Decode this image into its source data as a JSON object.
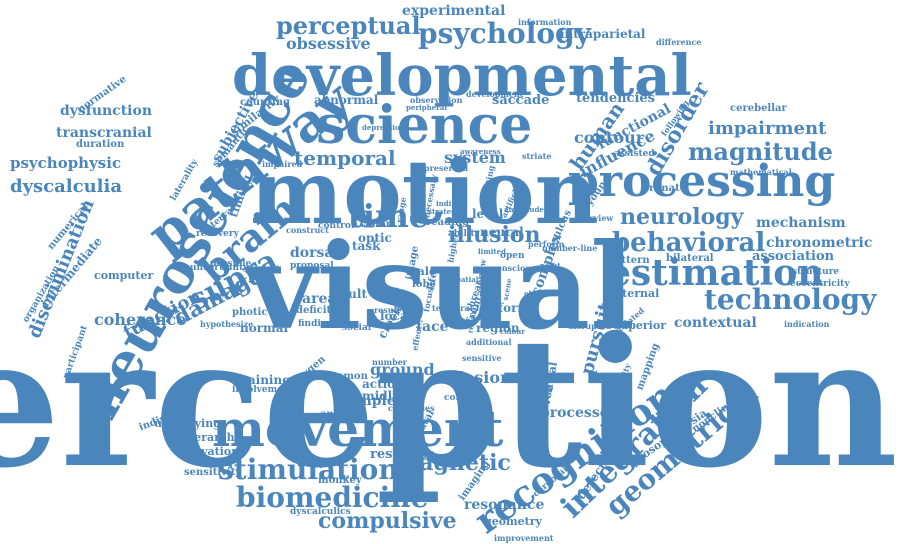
{
  "cloud": {
    "color": "#4a86bc",
    "words": [
      {
        "text": "perception"
      },
      {
        "text": "visual"
      },
      {
        "text": "motion"
      },
      {
        "text": "neuroscience"
      },
      {
        "text": "developmental"
      },
      {
        "text": "science"
      },
      {
        "text": "pathway"
      },
      {
        "text": "processing"
      },
      {
        "text": "movement"
      },
      {
        "text": "brain"
      },
      {
        "text": "time"
      },
      {
        "text": "estimation"
      },
      {
        "text": "technology"
      },
      {
        "text": "behavioral"
      },
      {
        "text": "recognition"
      },
      {
        "text": "integration"
      },
      {
        "text": "geometrical"
      },
      {
        "text": "biomedicine"
      },
      {
        "text": "stimulation"
      },
      {
        "text": "psychology"
      },
      {
        "text": "perceptual"
      },
      {
        "text": "magnitude"
      },
      {
        "text": "neurology"
      },
      {
        "text": "impairment"
      },
      {
        "text": "temporal"
      },
      {
        "text": "illusion"
      },
      {
        "text": "compulsive"
      },
      {
        "text": "supra"
      },
      {
        "text": "damage"
      },
      {
        "text": "function"
      },
      {
        "text": "disorder"
      },
      {
        "text": "human"
      },
      {
        "text": "magnetic"
      },
      {
        "text": "pursuit"
      },
      {
        "text": "discrimination"
      },
      {
        "text": "dyscalculia"
      },
      {
        "text": "obsessive"
      },
      {
        "text": "experimental"
      },
      {
        "text": "system"
      },
      {
        "text": "contour"
      },
      {
        "text": "mechanism"
      },
      {
        "text": "chronometric"
      },
      {
        "text": "association"
      },
      {
        "text": "coherence"
      },
      {
        "text": "influence"
      },
      {
        "text": "functional"
      },
      {
        "text": "transcranial"
      },
      {
        "text": "psychophysic"
      },
      {
        "text": "dysfunction"
      },
      {
        "text": "intraparietal"
      },
      {
        "text": "saccade"
      },
      {
        "text": "tendencies"
      },
      {
        "text": "abnormal"
      },
      {
        "text": "subjective"
      },
      {
        "text": "similarity"
      },
      {
        "text": "counting"
      },
      {
        "text": "normative"
      },
      {
        "text": "semantic"
      },
      {
        "text": "duration"
      },
      {
        "text": "laterality"
      },
      {
        "text": "numerical"
      },
      {
        "text": "intermediate"
      },
      {
        "text": "timing"
      },
      {
        "text": "computer"
      },
      {
        "text": "organization"
      },
      {
        "text": "participant"
      },
      {
        "text": "training"
      },
      {
        "text": "ground"
      },
      {
        "text": "lesion"
      },
      {
        "text": "ventral"
      },
      {
        "text": "processes"
      },
      {
        "text": "detection"
      },
      {
        "text": "prosopagnosia"
      },
      {
        "text": "nonclinical"
      },
      {
        "text": "response"
      },
      {
        "text": "resonance"
      },
      {
        "text": "geometry"
      },
      {
        "text": "improvement"
      },
      {
        "text": "imaging"
      },
      {
        "text": "cerebral"
      },
      {
        "text": "monkey"
      },
      {
        "text": "sensitivity"
      },
      {
        "text": "activation"
      },
      {
        "text": "hierarchy"
      },
      {
        "text": "underlying"
      },
      {
        "text": "individual"
      },
      {
        "text": "dyscalculics"
      },
      {
        "text": "adult"
      },
      {
        "text": "dorsal"
      },
      {
        "text": "area"
      },
      {
        "text": "face"
      },
      {
        "text": "local"
      },
      {
        "text": "neural"
      },
      {
        "text": "level"
      },
      {
        "text": "complex"
      },
      {
        "text": "form"
      },
      {
        "text": "region"
      },
      {
        "text": "internal"
      },
      {
        "text": "contextual"
      },
      {
        "text": "superior"
      },
      {
        "text": "indication"
      },
      {
        "text": "eccentricity"
      },
      {
        "text": "structure"
      },
      {
        "text": "bilateral"
      },
      {
        "text": "pattern"
      },
      {
        "text": "primate"
      },
      {
        "text": "mathematical"
      },
      {
        "text": "cerebellar"
      },
      {
        "text": "following"
      },
      {
        "text": "assisted"
      },
      {
        "text": "striate"
      },
      {
        "text": "difference"
      },
      {
        "text": "information"
      },
      {
        "text": "development"
      },
      {
        "text": "observation"
      },
      {
        "text": "peripheral"
      },
      {
        "text": "depression"
      },
      {
        "text": "impaired"
      },
      {
        "text": "preserved"
      },
      {
        "text": "awareness"
      },
      {
        "text": "task"
      },
      {
        "text": "optic"
      },
      {
        "text": "vision"
      },
      {
        "text": "control"
      },
      {
        "text": "construct"
      },
      {
        "text": "interval"
      },
      {
        "text": "recovery"
      },
      {
        "text": "uncertainty"
      },
      {
        "text": "possible"
      },
      {
        "text": "proposal"
      },
      {
        "text": "photic"
      },
      {
        "text": "deficit"
      },
      {
        "text": "normal"
      },
      {
        "text": "finding"
      },
      {
        "text": "social"
      },
      {
        "text": "hypothesize"
      },
      {
        "text": "oxygen"
      },
      {
        "text": "common"
      },
      {
        "text": "sample"
      },
      {
        "text": "anterior"
      },
      {
        "text": "striatal"
      },
      {
        "text": "midline"
      },
      {
        "text": "action"
      },
      {
        "text": "involvement"
      },
      {
        "text": "clock"
      },
      {
        "text": "data"
      },
      {
        "text": "frontal"
      },
      {
        "text": "open"
      },
      {
        "text": "disrupted"
      },
      {
        "text": "correlated"
      },
      {
        "text": "mapping"
      },
      {
        "text": "correlate"
      },
      {
        "text": "hierarchical"
      },
      {
        "text": "integrity"
      },
      {
        "text": "categories"
      },
      {
        "text": "number"
      },
      {
        "text": "sensitive"
      },
      {
        "text": "additional"
      },
      {
        "text": "reading"
      },
      {
        "text": "ability"
      },
      {
        "text": "range"
      },
      {
        "text": "sulcus"
      },
      {
        "text": "purview"
      },
      {
        "text": "young"
      },
      {
        "text": "male"
      },
      {
        "text": "lobe"
      },
      {
        "text": "image"
      },
      {
        "text": "life"
      },
      {
        "text": "higher"
      },
      {
        "text": "threat"
      },
      {
        "text": "result"
      },
      {
        "text": "unconscious"
      },
      {
        "text": "artificial"
      },
      {
        "text": "necessary"
      },
      {
        "text": "indirect"
      },
      {
        "text": "strategy"
      },
      {
        "text": "translating"
      },
      {
        "text": "perform"
      },
      {
        "text": "number-line"
      },
      {
        "text": "arrow"
      },
      {
        "text": "spatial"
      },
      {
        "text": "focus"
      },
      {
        "text": "temporal-lobe"
      },
      {
        "text": "amplitude"
      },
      {
        "text": "point"
      },
      {
        "text": "effect"
      },
      {
        "text": "limited"
      },
      {
        "text": "retina"
      },
      {
        "text": "colour"
      },
      {
        "text": "scene"
      },
      {
        "text": "object"
      }
    ]
  }
}
